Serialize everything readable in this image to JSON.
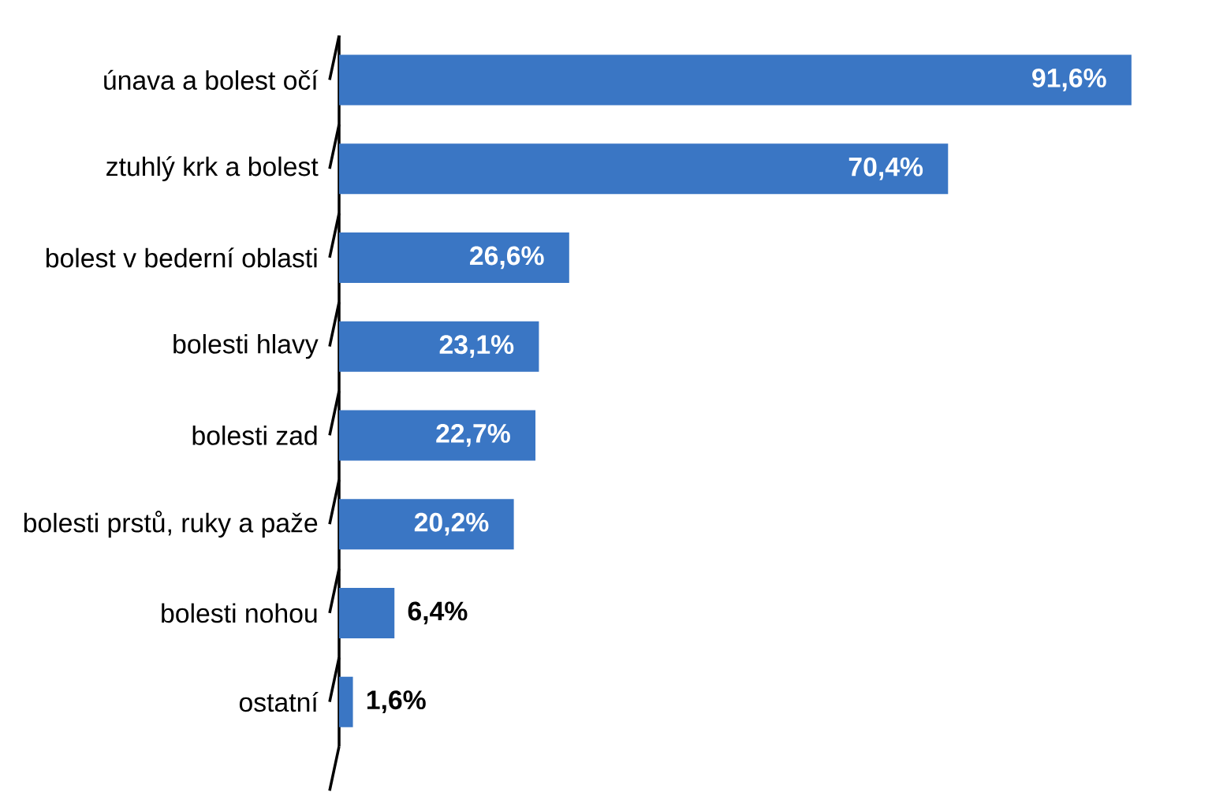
{
  "chart_data": {
    "type": "bar",
    "orientation": "horizontal",
    "categories": [
      "únava a bolest očí",
      "ztuhlý krk a bolest",
      "bolest v bederní oblasti",
      "bolesti hlavy",
      "bolesti zad",
      "bolesti prstů, ruky a paže",
      "bolesti nohou",
      "ostatní"
    ],
    "values": [
      91.6,
      70.4,
      26.6,
      23.1,
      22.7,
      20.2,
      6.4,
      1.6
    ],
    "value_labels": [
      "91,6%",
      "70,4%",
      "26,6%",
      "23,1%",
      "22,7%",
      "20,2%",
      "6,4%",
      "1,6%"
    ],
    "color": "#3a76c4"
  }
}
